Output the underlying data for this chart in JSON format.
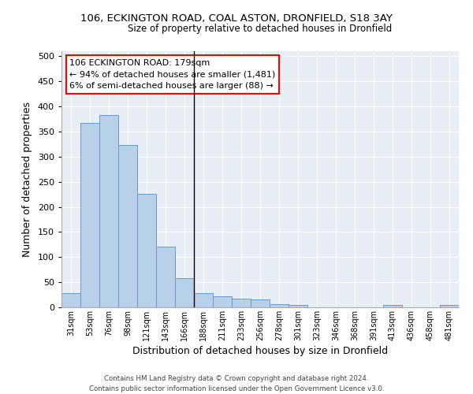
{
  "title_line1": "106, ECKINGTON ROAD, COAL ASTON, DRONFIELD, S18 3AY",
  "title_line2": "Size of property relative to detached houses in Dronfield",
  "xlabel": "Distribution of detached houses by size in Dronfield",
  "ylabel": "Number of detached properties",
  "bar_labels": [
    "31sqm",
    "53sqm",
    "76sqm",
    "98sqm",
    "121sqm",
    "143sqm",
    "166sqm",
    "188sqm",
    "211sqm",
    "233sqm",
    "256sqm",
    "278sqm",
    "301sqm",
    "323sqm",
    "346sqm",
    "368sqm",
    "391sqm",
    "413sqm",
    "436sqm",
    "458sqm",
    "481sqm"
  ],
  "bar_values": [
    28,
    367,
    383,
    323,
    226,
    121,
    58,
    28,
    22,
    17,
    16,
    6,
    5,
    0,
    0,
    0,
    0,
    5,
    0,
    0,
    4
  ],
  "bar_color": "#b8d0e8",
  "bar_edge_color": "#6699cc",
  "background_color": "#e8eef5",
  "annotation_text": "106 ECKINGTON ROAD: 179sqm\n← 94% of detached houses are smaller (1,481)\n6% of semi-detached houses are larger (88) →",
  "vline_x_index": 7,
  "ylim": [
    0,
    510
  ],
  "yticks": [
    0,
    50,
    100,
    150,
    200,
    250,
    300,
    350,
    400,
    450,
    500
  ],
  "footer_line1": "Contains HM Land Registry data © Crown copyright and database right 2024.",
  "footer_line2": "Contains public sector information licensed under the Open Government Licence v3.0."
}
